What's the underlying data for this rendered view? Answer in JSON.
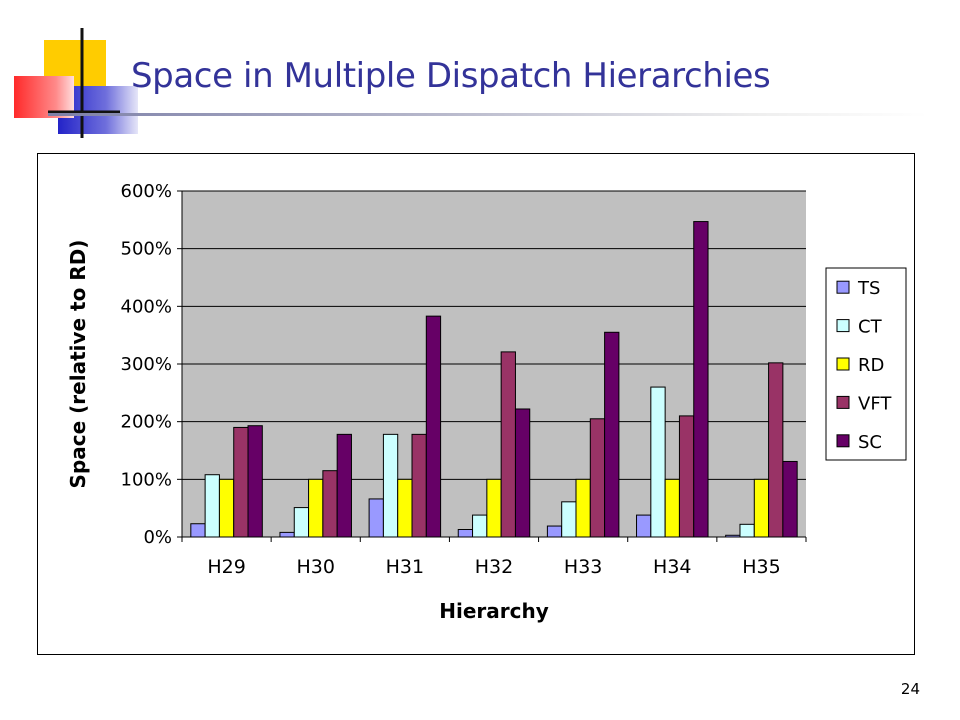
{
  "slide": {
    "title": "Space in Multiple Dispatch Hierarchies",
    "page_number": "24"
  },
  "colors": {
    "title": "#333399",
    "plot_background": "#c0c0c0",
    "TS": "#9999ff",
    "CT": "#ccffff",
    "RD": "#ffff00",
    "VFT": "#993366",
    "SC": "#660066"
  },
  "chart_data": {
    "type": "bar",
    "title": "",
    "xlabel": "Hierarchy",
    "ylabel": "Space (relative to RD)",
    "ylim": [
      0,
      600
    ],
    "y_unit": "%",
    "y_ticks": [
      "0%",
      "100%",
      "200%",
      "300%",
      "400%",
      "500%",
      "600%"
    ],
    "y_tick_values": [
      0,
      100,
      200,
      300,
      400,
      500,
      600
    ],
    "grid": true,
    "legend_position": "right",
    "categories": [
      "H29",
      "H30",
      "H31",
      "H32",
      "H33",
      "H34",
      "H35"
    ],
    "series": [
      {
        "name": "TS",
        "color": "#9999ff",
        "values": [
          23,
          8,
          66,
          13,
          19,
          38,
          3
        ]
      },
      {
        "name": "CT",
        "color": "#ccffff",
        "values": [
          108,
          51,
          178,
          38,
          61,
          260,
          22
        ]
      },
      {
        "name": "RD",
        "color": "#ffff00",
        "values": [
          100,
          100,
          100,
          100,
          100,
          100,
          100
        ]
      },
      {
        "name": "VFT",
        "color": "#993366",
        "values": [
          190,
          115,
          178,
          321,
          205,
          210,
          302
        ]
      },
      {
        "name": "SC",
        "color": "#660066",
        "values": [
          193,
          178,
          383,
          222,
          355,
          547,
          131
        ]
      }
    ]
  }
}
